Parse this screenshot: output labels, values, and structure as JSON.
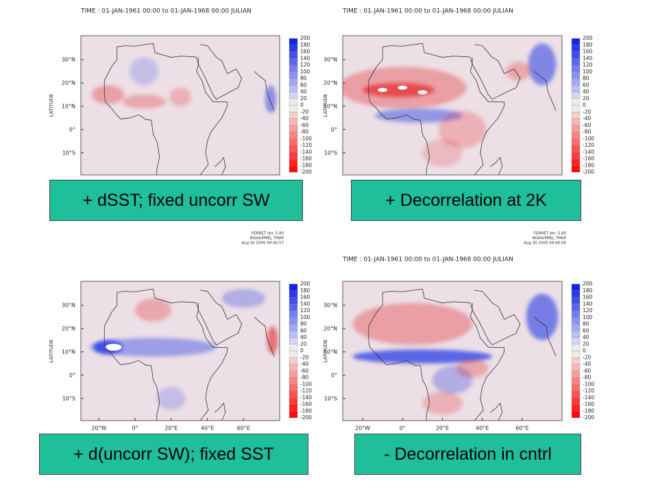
{
  "panels": [
    {
      "time": "TIME : 01-JAN-1961 00:00 to 01-JAN-1968 00:00 JULIAN",
      "caption": "+ dSST; fixed uncorr SW"
    },
    {
      "time": "TIME : 01-JAN-1961 00:00 to 01-JAN-1968 00:00 JULIAN",
      "caption": "+ Decorrelation at 2K"
    },
    {
      "ferret": [
        "FERRET Ver. 5.80",
        "NOAA/PMEL TMAP",
        "Aug 30 2005 09:40:57"
      ],
      "caption": "+ d(uncorr SW); fixed SST"
    },
    {
      "time": "TIME : 01-JAN-1961 00:00 to 01-JAN-1968 00:00 JULIAN",
      "ferret": [
        "FERRET Ver. 5.80",
        "NOAA/PMEL TMAP",
        "Aug 30 2005 09:40:56"
      ],
      "caption": "- Decorrelation in cntrl"
    }
  ],
  "latitude_label": "LATITUDE",
  "lat_ticks": [
    "30°N",
    "20°N",
    "10°N",
    "0°",
    "10°S"
  ],
  "lon_ticks": [
    "20°W",
    "0°",
    "20°E",
    "40°E",
    "60°E"
  ],
  "colorbar_labels": [
    200,
    180,
    160,
    140,
    120,
    100,
    80,
    60,
    40,
    20,
    0,
    -20,
    -40,
    -60,
    -80,
    -100,
    -120,
    -140,
    -160,
    -180,
    -200
  ]
}
